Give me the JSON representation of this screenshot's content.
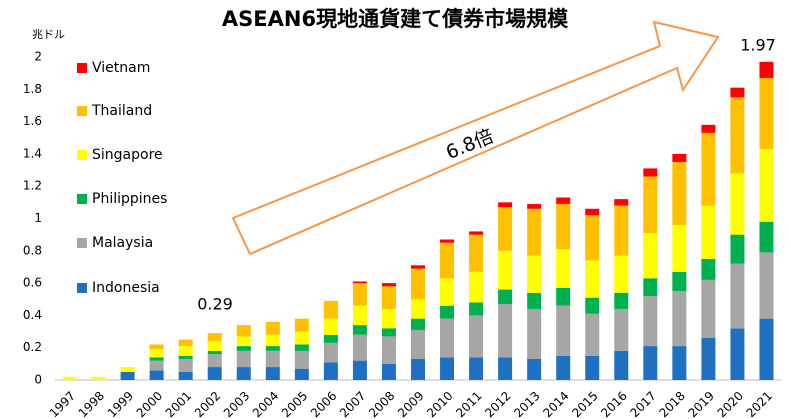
{
  "chart_data": {
    "type": "stacked_bar",
    "title": "ASEAN6現地通貨建て債券市場規模",
    "y_unit": "兆ドル",
    "annotations": [
      "0.29",
      "6.8倍",
      "1.97"
    ],
    "categories": [
      "1997",
      "1998",
      "1999",
      "2000",
      "2001",
      "2002",
      "2003",
      "2004",
      "2005",
      "2006",
      "2007",
      "2008",
      "2009",
      "2010",
      "2011",
      "2012",
      "2013",
      "2014",
      "2015",
      "2016",
      "2017",
      "2018",
      "2019",
      "2020",
      "2021"
    ],
    "series": [
      {
        "name": "Indonesia",
        "color": "#1f70c1",
        "values": [
          0,
          0,
          0.05,
          0.06,
          0.05,
          0.08,
          0.08,
          0.08,
          0.07,
          0.11,
          0.12,
          0.1,
          0.13,
          0.14,
          0.14,
          0.14,
          0.13,
          0.15,
          0.15,
          0.18,
          0.21,
          0.21,
          0.26,
          0.32,
          0.38
        ]
      },
      {
        "name": "Malaysia",
        "color": "#a6a6a6",
        "values": [
          0,
          0,
          0,
          0.06,
          0.08,
          0.08,
          0.1,
          0.1,
          0.11,
          0.12,
          0.16,
          0.17,
          0.18,
          0.24,
          0.26,
          0.33,
          0.31,
          0.31,
          0.26,
          0.26,
          0.31,
          0.34,
          0.36,
          0.4,
          0.41
        ]
      },
      {
        "name": "Philippines",
        "color": "#00b050",
        "values": [
          0,
          0,
          0,
          0.02,
          0.02,
          0.02,
          0.03,
          0.03,
          0.04,
          0.05,
          0.06,
          0.05,
          0.07,
          0.08,
          0.08,
          0.09,
          0.1,
          0.11,
          0.1,
          0.1,
          0.11,
          0.12,
          0.13,
          0.18,
          0.19
        ]
      },
      {
        "name": "Singapore",
        "color": "#ffff00",
        "values": [
          0.02,
          0.02,
          0.03,
          0.05,
          0.06,
          0.06,
          0.06,
          0.07,
          0.08,
          0.1,
          0.12,
          0.12,
          0.12,
          0.17,
          0.19,
          0.24,
          0.23,
          0.24,
          0.23,
          0.23,
          0.28,
          0.29,
          0.33,
          0.38,
          0.45
        ]
      },
      {
        "name": "Thailand",
        "color": "#ffc000",
        "values": [
          0,
          0,
          0,
          0.03,
          0.04,
          0.05,
          0.07,
          0.08,
          0.08,
          0.11,
          0.14,
          0.14,
          0.19,
          0.22,
          0.23,
          0.27,
          0.29,
          0.28,
          0.28,
          0.31,
          0.35,
          0.39,
          0.45,
          0.47,
          0.44
        ]
      },
      {
        "name": "Vietnam",
        "color": "#ff0000",
        "values": [
          0,
          0,
          0,
          0,
          0,
          0,
          0,
          0,
          0,
          0,
          0.01,
          0.02,
          0.02,
          0.02,
          0.02,
          0.03,
          0.03,
          0.04,
          0.04,
          0.04,
          0.05,
          0.05,
          0.05,
          0.06,
          0.1
        ]
      }
    ],
    "ylim": [
      0,
      2
    ],
    "yticks": [
      0,
      0.2,
      0.4,
      0.6,
      0.8,
      1,
      1.2,
      1.4,
      1.6,
      1.8,
      2
    ],
    "grid": false,
    "legend": "left"
  }
}
